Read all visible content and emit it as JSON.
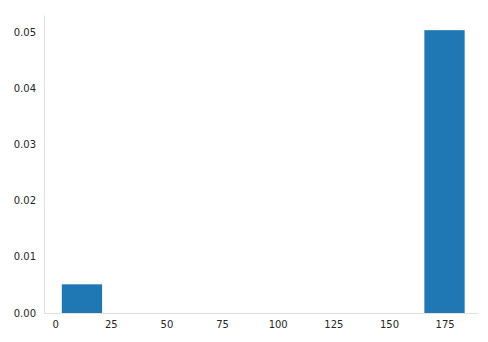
{
  "chart_data": {
    "type": "histogram",
    "bins": [
      3,
      21.1,
      39.2,
      57.3,
      75.4,
      93.5,
      111.6,
      129.7,
      147.8,
      165.9,
      184
    ],
    "values": [
      0.0051,
      0,
      0,
      0,
      0,
      0,
      0,
      0,
      0,
      0.0503
    ],
    "color": "#1f77b4",
    "xlim": [
      -5,
      190
    ],
    "ylim": [
      0,
      0.053
    ],
    "xticks": [
      0,
      25,
      50,
      75,
      100,
      125,
      150,
      175
    ],
    "yticks": [
      {
        "value": 0,
        "label": "0.00"
      },
      {
        "value": 0.01,
        "label": "0.01"
      },
      {
        "value": 0.02,
        "label": "0.02"
      },
      {
        "value": 0.03,
        "label": "0.03"
      },
      {
        "value": 0.04,
        "label": "0.04"
      },
      {
        "value": 0.05,
        "label": "0.05"
      }
    ],
    "grid": false
  }
}
